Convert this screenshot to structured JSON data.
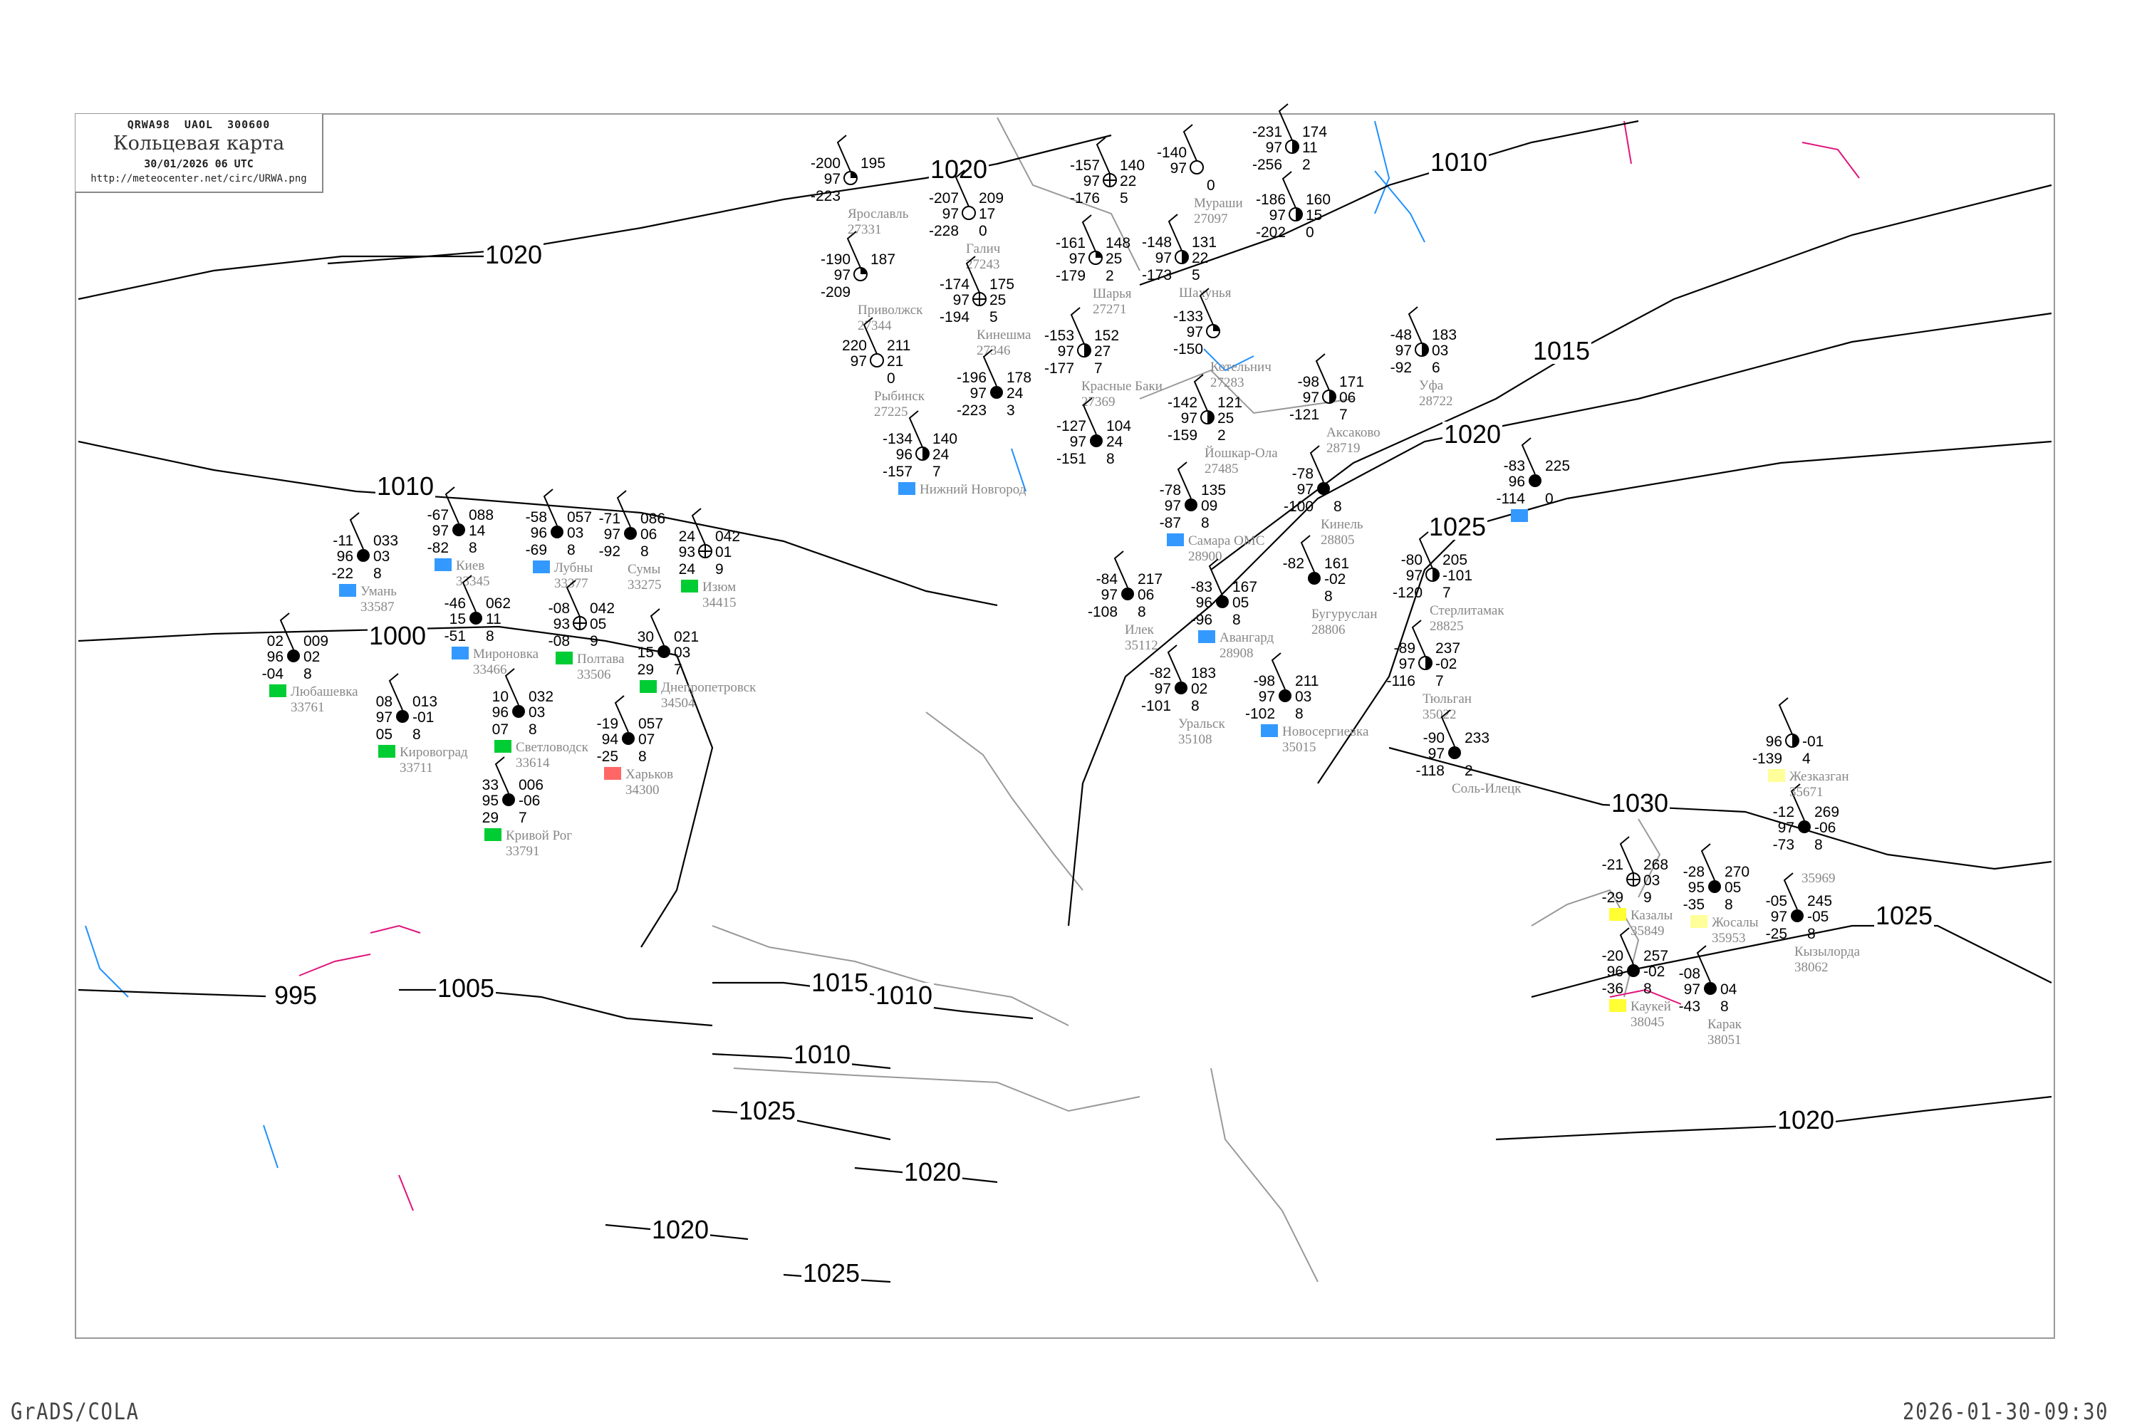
{
  "header": {
    "code_line": "QRWA98  UAOL  300600",
    "title": "Кольцевая карта",
    "datetime": "30/01/2026 06 UTC",
    "url": "http://meteocenter.net/circ/URWA.png"
  },
  "footer": {
    "left": "GrADS/COLA",
    "right": "2026-01-30-09:30"
  },
  "colors": {
    "isobar": "#000000",
    "coast": "#999999",
    "river": "#1e90ff",
    "front": "#e0157a",
    "precip_snow": "#3399ff",
    "precip_none": "#00cc33",
    "precip_yellow": "#ffff33",
    "precip_pale": "#ffff99",
    "precip_red": "#ff6666"
  },
  "isobars": [
    {
      "value": "1020"
    },
    {
      "value": "1010"
    },
    {
      "value": "1020"
    },
    {
      "value": "1015"
    },
    {
      "value": "1010"
    },
    {
      "value": "1000"
    },
    {
      "value": "1020"
    },
    {
      "value": "1025"
    },
    {
      "value": "1030"
    },
    {
      "value": "1025"
    },
    {
      "value": "1015"
    },
    {
      "value": "1010"
    },
    {
      "value": "995"
    },
    {
      "value": "1005"
    },
    {
      "value": "1010"
    },
    {
      "value": "1025"
    },
    {
      "value": "1020"
    },
    {
      "value": "1020"
    },
    {
      "value": "1020"
    },
    {
      "value": "1025"
    }
  ],
  "stations": [
    {
      "name": "Галич",
      "index": "27243",
      "t": "-207",
      "vis": "97",
      "td": "-228",
      "p": "209",
      "tend": "17",
      "cloud": "0",
      "sky": "clear",
      "box": ""
    },
    {
      "name": "Шарья",
      "index": "27271",
      "t": "-161",
      "vis": "97",
      "td": "-179",
      "p": "148",
      "tend": "25",
      "cloud": "2",
      "sky": "quarter",
      "box": ""
    },
    {
      "name": "Кинешма",
      "index": "27346",
      "t": "-174",
      "vis": "97",
      "td": "-194",
      "p": "175",
      "tend": "25",
      "cloud": "5",
      "sky": "cross",
      "box": ""
    },
    {
      "name": "Приволжск",
      "index": "27344",
      "t": "-190",
      "vis": "97",
      "td": "-209",
      "p": "187",
      "tend": "",
      "cloud": "",
      "sky": "quarter",
      "box": ""
    },
    {
      "name": "Ярославль",
      "index": "27331",
      "t": "-200",
      "vis": "97",
      "td": "-223",
      "p": "195",
      "tend": "",
      "cloud": "",
      "sky": "quarter",
      "box": ""
    },
    {
      "name": "Рыбинск",
      "index": "27225",
      "t": "220",
      "vis": "97",
      "td": "",
      "p": "211",
      "tend": "21",
      "cloud": "0",
      "sky": "clear",
      "box": ""
    },
    {
      "name": "Красные Баки",
      "index": "27369",
      "t": "-153",
      "vis": "97",
      "td": "-177",
      "p": "152",
      "tend": "27",
      "cloud": "7",
      "sky": "half",
      "box": ""
    },
    {
      "name": "Шахунья",
      "index": "",
      "t": "-148",
      "vis": "97",
      "td": "-173",
      "p": "131",
      "tend": "22",
      "cloud": "5",
      "sky": "half",
      "box": ""
    },
    {
      "name": "Котельнич",
      "index": "27283",
      "t": "-133",
      "vis": "97",
      "td": "-150",
      "p": "",
      "tend": "",
      "cloud": "",
      "sky": "quarter",
      "box": ""
    },
    {
      "name": "Мураши",
      "index": "27097",
      "t": "-140",
      "vis": "97",
      "td": "",
      "p": "",
      "tend": "",
      "cloud": "0",
      "sky": "clear",
      "box": ""
    },
    {
      "name": "",
      "index": "",
      "t": "-157",
      "vis": "97",
      "td": "-176",
      "p": "140",
      "tend": "22",
      "cloud": "5",
      "sky": "cross",
      "box": ""
    },
    {
      "name": "Йошкар-Ола",
      "index": "27485",
      "t": "-142",
      "vis": "97",
      "td": "-159",
      "p": "121",
      "tend": "25",
      "cloud": "2",
      "sky": "half",
      "box": ""
    },
    {
      "name": "",
      "index": "",
      "t": "-127",
      "vis": "97",
      "td": "-151",
      "p": "104",
      "tend": "24",
      "cloud": "8",
      "sky": "full",
      "box": ""
    },
    {
      "name": "Нижний Новгород",
      "index": "",
      "t": "-134",
      "vis": "96",
      "td": "-157",
      "p": "140",
      "tend": "24",
      "cloud": "7",
      "sky": "half",
      "box": "snow"
    },
    {
      "name": "",
      "index": "",
      "t": "-196",
      "vis": "97",
      "td": "-223",
      "p": "178",
      "tend": "24",
      "cloud": "3",
      "sky": "full",
      "box": ""
    },
    {
      "name": "",
      "index": "",
      "t": "-231",
      "vis": "97",
      "td": "-256",
      "p": "174",
      "tend": "11",
      "cloud": "2",
      "sky": "half",
      "box": ""
    },
    {
      "name": "",
      "index": "",
      "t": "-186",
      "vis": "97",
      "td": "-202",
      "p": "160",
      "tend": "15",
      "cloud": "0",
      "sky": "half",
      "box": ""
    },
    {
      "name": "Самара ОМС",
      "index": "28900",
      "t": "-78",
      "vis": "97",
      "td": "-87",
      "p": "135",
      "tend": "09",
      "cloud": "8",
      "sky": "full",
      "box": "snow"
    },
    {
      "name": "Кинель",
      "index": "28805",
      "t": "-78",
      "vis": "97",
      "td": "-100",
      "p": "",
      "tend": "",
      "cloud": "8",
      "sky": "full",
      "box": ""
    },
    {
      "name": "Бугуруслан",
      "index": "28806",
      "t": "-82",
      "vis": "",
      "td": "",
      "p": "161",
      "tend": "-02",
      "cloud": "8",
      "sky": "full",
      "box": ""
    },
    {
      "name": "Авангард",
      "index": "28908",
      "t": "-83",
      "vis": "96",
      "td": "-96",
      "p": "167",
      "tend": "05",
      "cloud": "8",
      "sky": "full",
      "box": "snow"
    },
    {
      "name": "Аксаково",
      "index": "28719",
      "t": "-98",
      "vis": "97",
      "td": "-121",
      "p": "171",
      "tend": "06",
      "cloud": "7",
      "sky": "half",
      "box": ""
    },
    {
      "name": "Стерлитамак",
      "index": "28825",
      "t": "-80",
      "vis": "97",
      "td": "-120",
      "p": "205",
      "tend": "-101",
      "cloud": "7",
      "sky": "half",
      "box": ""
    },
    {
      "name": "Уфа",
      "index": "28722",
      "t": "-48",
      "vis": "97",
      "td": "-92",
      "p": "183",
      "tend": "03",
      "cloud": "6",
      "sky": "half",
      "box": ""
    },
    {
      "name": "",
      "index": "",
      "t": "-83",
      "vis": "96",
      "td": "-114",
      "p": "225",
      "tend": "",
      "cloud": "0",
      "sky": "full",
      "box": "snow"
    },
    {
      "name": "Тюльган",
      "index": "35022",
      "t": "-89",
      "vis": "97",
      "td": "-116",
      "p": "237",
      "tend": "-02",
      "cloud": "7",
      "sky": "half",
      "box": ""
    },
    {
      "name": "Новосергиевка",
      "index": "35015",
      "t": "-98",
      "vis": "97",
      "td": "-102",
      "p": "211",
      "tend": "03",
      "cloud": "8",
      "sky": "full",
      "box": "snow"
    },
    {
      "name": "Уральск",
      "index": "35108",
      "t": "-82",
      "vis": "97",
      "td": "-101",
      "p": "183",
      "tend": "02",
      "cloud": "8",
      "sky": "full",
      "box": ""
    },
    {
      "name": "Илек",
      "index": "35112",
      "t": "-84",
      "vis": "97",
      "td": "-108",
      "p": "217",
      "tend": "06",
      "cloud": "8",
      "sky": "full",
      "box": ""
    },
    {
      "name": "Соль-Илецк",
      "index": "",
      "t": "-90",
      "vis": "97",
      "td": "-118",
      "p": "233",
      "tend": "",
      "cloud": "2",
      "sky": "full",
      "box": ""
    },
    {
      "name": "Киев",
      "index": "33345",
      "t": "-67",
      "vis": "97",
      "td": "-82",
      "p": "088",
      "tend": "14",
      "cloud": "8",
      "sky": "full",
      "box": "snow"
    },
    {
      "name": "Мироновка",
      "index": "33466",
      "t": "-46",
      "vis": "15",
      "td": "-51",
      "p": "062",
      "tend": "11",
      "cloud": "8",
      "sky": "full",
      "box": "snow"
    },
    {
      "name": "Лубны",
      "index": "33377",
      "t": "-58",
      "vis": "96",
      "td": "-69",
      "p": "057",
      "tend": "03",
      "cloud": "8",
      "sky": "full",
      "box": "snow"
    },
    {
      "name": "Сумы",
      "index": "33275",
      "t": "-71",
      "vis": "97",
      "td": "-92",
      "p": "086",
      "tend": "06",
      "cloud": "8",
      "sky": "full",
      "box": ""
    },
    {
      "name": "Умань",
      "index": "33587",
      "t": "-11",
      "vis": "96",
      "td": "-22",
      "p": "033",
      "tend": "03",
      "cloud": "8",
      "sky": "full",
      "box": "snow"
    },
    {
      "name": "Полтава",
      "index": "33506",
      "t": "-08",
      "vis": "93",
      "td": "-08",
      "p": "042",
      "tend": "05",
      "cloud": "9",
      "sky": "cross",
      "box": "none"
    },
    {
      "name": "Светловодск",
      "index": "33614",
      "t": "10",
      "vis": "96",
      "td": "07",
      "p": "032",
      "tend": "03",
      "cloud": "8",
      "sky": "full",
      "box": "none"
    },
    {
      "name": "Кировоград",
      "index": "33711",
      "t": "08",
      "vis": "97",
      "td": "05",
      "p": "013",
      "tend": "-01",
      "cloud": "8",
      "sky": "full",
      "box": "none"
    },
    {
      "name": "Любашевка",
      "index": "33761",
      "t": "02",
      "vis": "96",
      "td": "-04",
      "p": "009",
      "tend": "02",
      "cloud": "8",
      "sky": "full",
      "box": "none"
    },
    {
      "name": "Кривой Рог",
      "index": "33791",
      "t": "33",
      "vis": "95",
      "td": "29",
      "p": "006",
      "tend": "-06",
      "cloud": "7",
      "sky": "full",
      "box": "none"
    },
    {
      "name": "Днепропетровск",
      "index": "34504",
      "t": "30",
      "vis": "15",
      "td": "29",
      "p": "021",
      "tend": "03",
      "cloud": "7",
      "sky": "full",
      "box": "none"
    },
    {
      "name": "Харьков",
      "index": "34300",
      "t": "-19",
      "vis": "94",
      "td": "-25",
      "p": "057",
      "tend": "07",
      "cloud": "8",
      "sky": "full",
      "box": "red"
    },
    {
      "name": "Изюм",
      "index": "34415",
      "t": "24",
      "vis": "93",
      "td": "24",
      "p": "042",
      "tend": "01",
      "cloud": "9",
      "sky": "cross",
      "box": "none"
    },
    {
      "name": "Казалы",
      "index": "35849",
      "t": "-21",
      "vis": "",
      "td": "-29",
      "p": "268",
      "tend": "03",
      "cloud": "9",
      "sky": "cross",
      "box": "yellow"
    },
    {
      "name": "Жосалы",
      "index": "35953",
      "t": "-28",
      "vis": "95",
      "td": "-35",
      "p": "270",
      "tend": "05",
      "cloud": "8",
      "sky": "full",
      "box": "pale"
    },
    {
      "name": "Каукей",
      "index": "38045",
      "t": "-20",
      "vis": "96",
      "td": "-36",
      "p": "257",
      "tend": "-02",
      "cloud": "8",
      "sky": "full",
      "box": "yellow"
    },
    {
      "name": "Карак",
      "index": "38051",
      "t": "-08",
      "vis": "97",
      "td": "-43",
      "p": "",
      "tend": "04",
      "cloud": "8",
      "sky": "full",
      "box": ""
    },
    {
      "name": "Кызылорда",
      "index": "38062",
      "t": "-05",
      "vis": "97",
      "td": "-25",
      "p": "245",
      "tend": "-05",
      "cloud": "8",
      "sky": "full",
      "box": ""
    },
    {
      "name": "",
      "index": "35969",
      "t": "-12",
      "vis": "97",
      "td": "-73",
      "p": "269",
      "tend": "-06",
      "cloud": "8",
      "sky": "full",
      "box": ""
    },
    {
      "name": "Жезказган",
      "index": "35671",
      "t": "",
      "vis": "96",
      "td": "-139",
      "p": "",
      "tend": "-01",
      "cloud": "4",
      "sky": "half",
      "box": "pale"
    }
  ]
}
